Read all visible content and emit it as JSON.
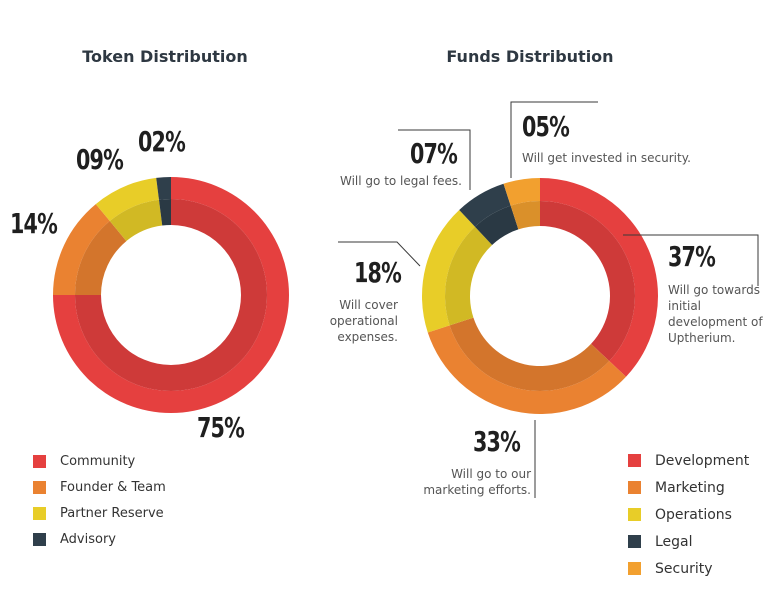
{
  "chart_data": [
    {
      "type": "donut",
      "title": "Token Distribution",
      "categories": [
        "Community",
        "Founder & Team",
        "Partner Reserve",
        "Advisory"
      ],
      "values": [
        75,
        14,
        9,
        2
      ],
      "value_labels": [
        "75%",
        "14%",
        "09%",
        "02%"
      ],
      "colors": [
        "#e5403f",
        "#ea8231",
        "#e8cd28",
        "#2f3f4b"
      ],
      "legend": "bottom-left"
    },
    {
      "type": "donut",
      "title": "Funds Distribution",
      "categories": [
        "Development",
        "Marketing",
        "Operations",
        "Legal",
        "Security"
      ],
      "values": [
        37,
        33,
        18,
        7,
        5
      ],
      "value_labels": [
        "37%",
        "33%",
        "18%",
        "07%",
        "05%"
      ],
      "annotations": [
        "Will go towards initial development of Uptherium.",
        "Will go to our marketing efforts.",
        "Will cover operational expenses.",
        "Will go to legal fees.",
        "Will get invested in security."
      ],
      "colors": [
        "#e5403f",
        "#ea8231",
        "#e8cd28",
        "#2f3f4b",
        "#f2a02f"
      ],
      "legend": "bottom-right"
    }
  ]
}
